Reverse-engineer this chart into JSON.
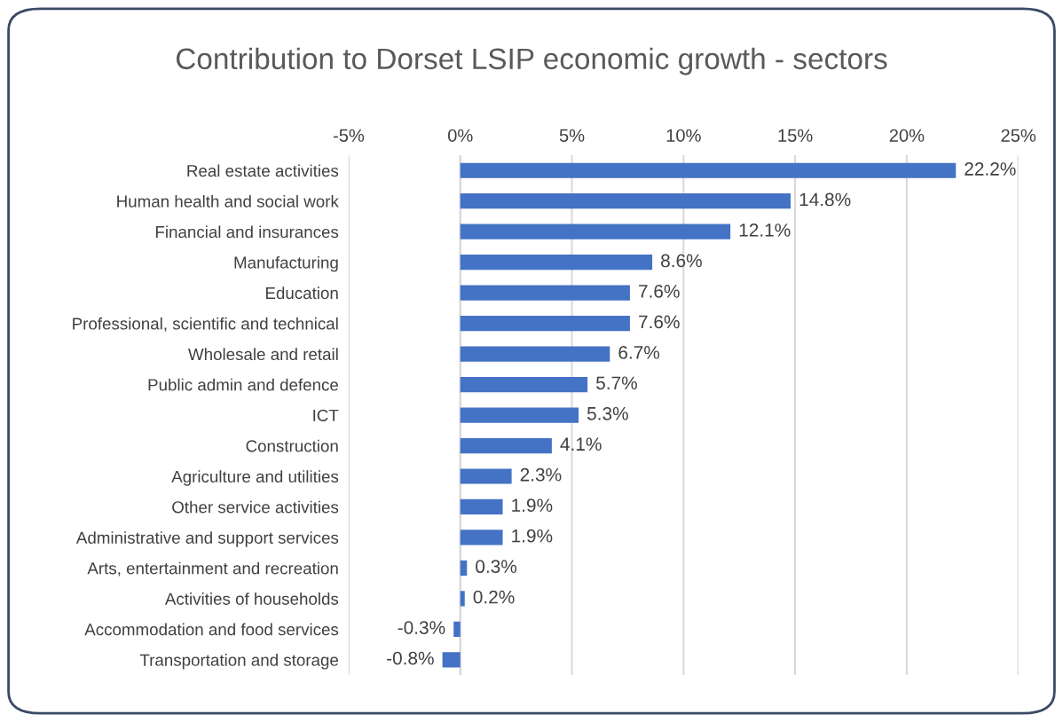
{
  "chart_data": {
    "type": "bar",
    "orientation": "horizontal",
    "title": "Contribution to Dorset LSIP economic growth - sectors",
    "categories": [
      "Real estate activities",
      "Human health and social work",
      "Financial and insurances",
      "Manufacturing",
      "Education",
      "Professional, scientific and technical",
      "Wholesale and retail",
      "Public admin and defence",
      "ICT",
      "Construction",
      "Agriculture and utilities",
      "Other service activities",
      "Administrative and support services",
      "Arts, entertainment and recreation",
      "Activities of households",
      "Accommodation and food services",
      "Transportation and storage"
    ],
    "values": [
      22.2,
      14.8,
      12.1,
      8.6,
      7.6,
      7.6,
      6.7,
      5.7,
      5.3,
      4.1,
      2.3,
      1.9,
      1.9,
      0.3,
      0.2,
      -0.3,
      -0.8
    ],
    "value_labels": [
      "22.2%",
      "14.8%",
      "12.1%",
      "8.6%",
      "7.6%",
      "7.6%",
      "6.7%",
      "5.7%",
      "5.3%",
      "4.1%",
      "2.3%",
      "1.9%",
      "1.9%",
      "0.3%",
      "0.2%",
      "-0.3%",
      "-0.8%"
    ],
    "color": "#4472c4",
    "xlim": [
      -5,
      25
    ],
    "xticks": [
      {
        "value": -5,
        "label": "-5%"
      },
      {
        "value": 0,
        "label": "0%"
      },
      {
        "value": 5,
        "label": "5%"
      },
      {
        "value": 10,
        "label": "10%"
      },
      {
        "value": 15,
        "label": "15%"
      },
      {
        "value": 20,
        "label": "20%"
      },
      {
        "value": 25,
        "label": "25%"
      }
    ],
    "grid": "x",
    "legend": false
  }
}
